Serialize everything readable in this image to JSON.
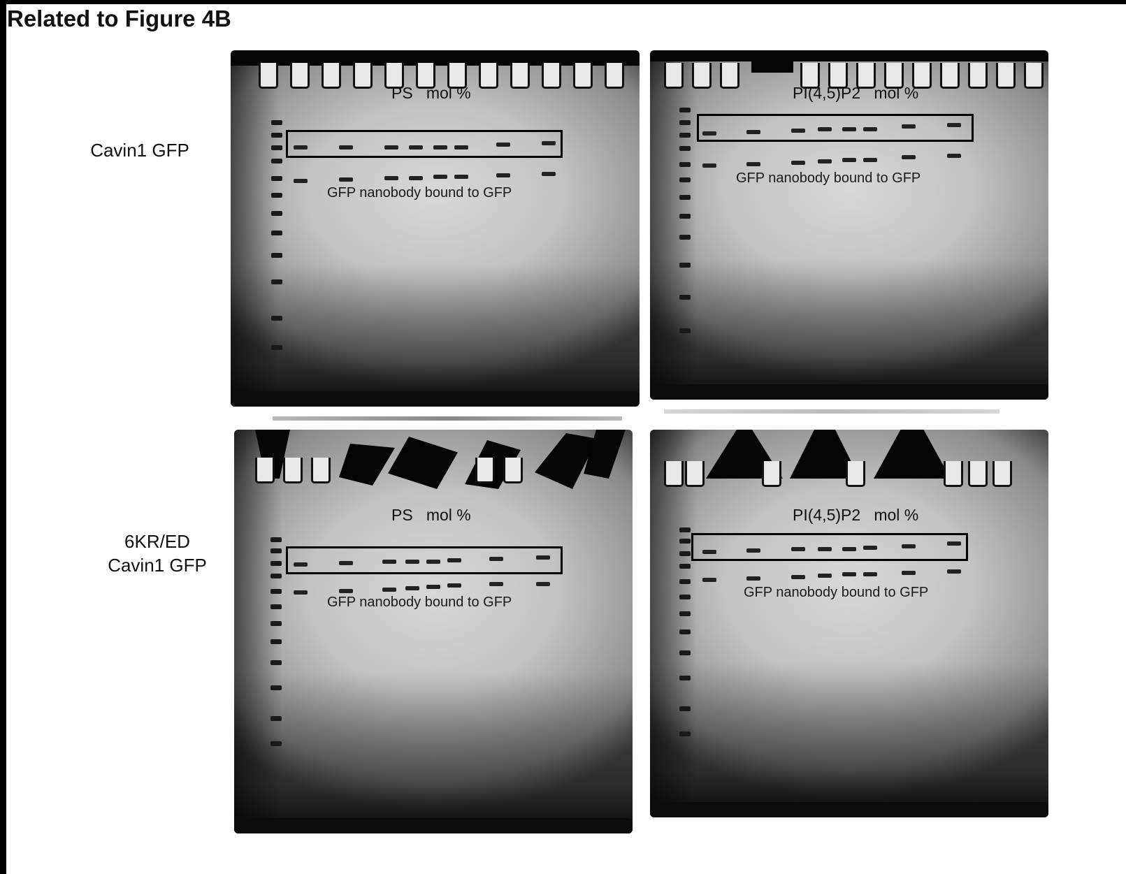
{
  "figure": {
    "title": "Related to Figure 4B"
  },
  "rows": [
    {
      "label_line1": "Cavin1 GFP",
      "label_line2": ""
    },
    {
      "label_line1": "6KR/ED",
      "label_line2": "Cavin1 GFP"
    }
  ],
  "gels": [
    {
      "id": "top-left",
      "header": "PS   mol %",
      "band_annotation": "GFP nanobody bound to GFP"
    },
    {
      "id": "top-right",
      "header": "PI(4,5)P2   mol %",
      "band_annotation": "GFP nanobody bound to GFP"
    },
    {
      "id": "bottom-left",
      "header": "PS   mol %",
      "band_annotation": "GFP nanobody bound to GFP"
    },
    {
      "id": "bottom-right",
      "header": "PI(4,5)P2   mol %",
      "band_annotation": "GFP nanobody bound to GFP"
    }
  ],
  "colors": {
    "background": "#ffffff",
    "frame": "#000000",
    "gel_light": "#d8d8d8",
    "gel_dark": "#0c0c0c"
  }
}
